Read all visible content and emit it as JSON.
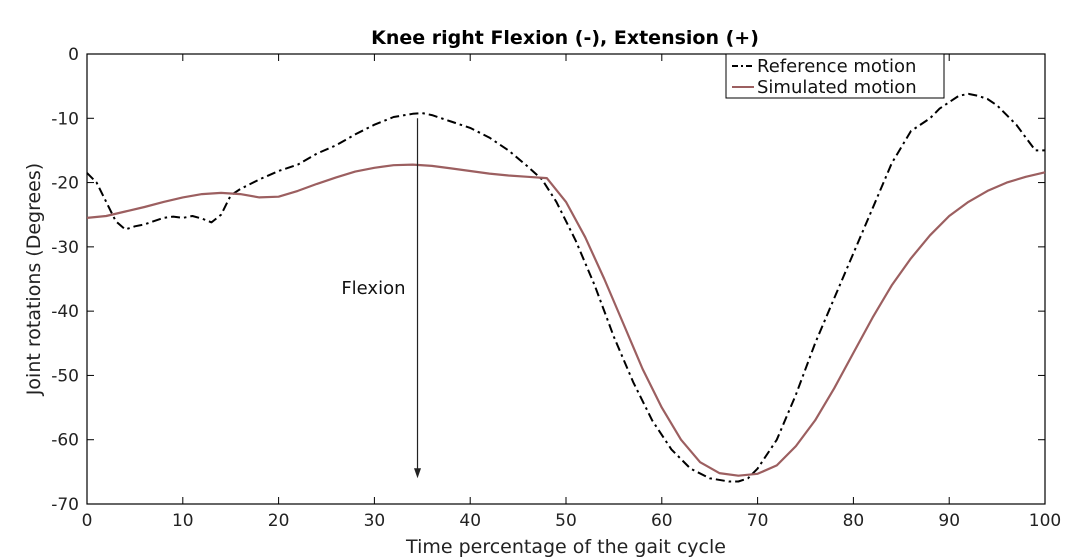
{
  "chart_data": {
    "type": "line",
    "title": "Knee right Flexion (-), Extension (+)",
    "xlabel": "Time percentage of the gait cycle",
    "ylabel": "Joint rotations (Degrees)",
    "xlim": [
      0,
      100
    ],
    "ylim": [
      -70,
      0
    ],
    "xticks": [
      0,
      10,
      20,
      30,
      40,
      50,
      60,
      70,
      80,
      90,
      100
    ],
    "yticks": [
      0,
      -10,
      -20,
      -30,
      -40,
      -50,
      -60,
      -70
    ],
    "grid": false,
    "legend_position": "top-right",
    "annotation": {
      "text": "Flexion",
      "arrow_x": 34.5,
      "arrow_from_y": -10,
      "arrow_to_y": -66
    },
    "series": [
      {
        "name": "Reference motion",
        "color": "#000000",
        "style": "dash-dot",
        "x": [
          0,
          1,
          2,
          3,
          4,
          5,
          6,
          7,
          8,
          9,
          10,
          11,
          12,
          13,
          14,
          15,
          16,
          18,
          20,
          22,
          24,
          26,
          28,
          30,
          32,
          34,
          35,
          36,
          38,
          40,
          42,
          44,
          46,
          47.5,
          49,
          51,
          53,
          55,
          57,
          59,
          61,
          63,
          65,
          67,
          68,
          69,
          70,
          72,
          74,
          76,
          78,
          80,
          82,
          84,
          86,
          88,
          89,
          90,
          91,
          92,
          93,
          94,
          95,
          96,
          97,
          98,
          99,
          100
        ],
        "y": [
          -18.5,
          -20,
          -23,
          -26,
          -27.3,
          -26.8,
          -26.5,
          -26,
          -25.5,
          -25.3,
          -25.5,
          -25.2,
          -25.6,
          -26.2,
          -25,
          -22,
          -21,
          -19.5,
          -18.2,
          -17.2,
          -15.5,
          -14.2,
          -12.5,
          -11,
          -9.8,
          -9.3,
          -9.2,
          -9.5,
          -10.5,
          -11.5,
          -13,
          -15,
          -17.5,
          -19.5,
          -23,
          -29,
          -36,
          -44,
          -51,
          -57,
          -61.5,
          -64.5,
          -66,
          -66.5,
          -66.5,
          -66,
          -64.5,
          -60,
          -53,
          -45,
          -38,
          -31,
          -24,
          -17,
          -12,
          -10,
          -8.5,
          -7.5,
          -6.5,
          -6.2,
          -6.5,
          -7,
          -8,
          -9.5,
          -11,
          -13,
          -15,
          -15
        ]
      },
      {
        "name": "Simulated motion",
        "color": "#9c5f60",
        "style": "solid",
        "x": [
          0,
          2,
          4,
          6,
          8,
          10,
          12,
          14,
          16,
          18,
          20,
          22,
          24,
          26,
          28,
          30,
          32,
          34,
          36,
          38,
          40,
          42,
          44,
          46,
          48,
          50,
          52,
          54,
          56,
          58,
          60,
          62,
          64,
          66,
          68,
          70,
          72,
          74,
          76,
          78,
          80,
          82,
          84,
          86,
          88,
          90,
          92,
          94,
          96,
          98,
          100
        ],
        "y": [
          -25.5,
          -25.2,
          -24.5,
          -23.8,
          -23,
          -22.3,
          -21.8,
          -21.6,
          -21.8,
          -22.3,
          -22.2,
          -21.3,
          -20.2,
          -19.2,
          -18.3,
          -17.7,
          -17.3,
          -17.2,
          -17.4,
          -17.8,
          -18.2,
          -18.6,
          -18.9,
          -19.1,
          -19.3,
          -23,
          -28.5,
          -35,
          -42,
          -49,
          -55,
          -60,
          -63.5,
          -65.2,
          -65.6,
          -65.3,
          -64,
          -61,
          -57,
          -52,
          -46.5,
          -41,
          -36,
          -31.8,
          -28.2,
          -25.2,
          -23,
          -21.3,
          -20,
          -19.1,
          -18.4
        ]
      }
    ]
  }
}
